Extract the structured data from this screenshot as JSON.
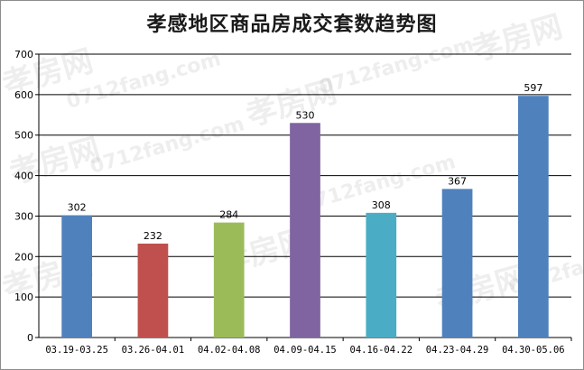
{
  "chart_data": {
    "type": "bar",
    "title": "孝感地区商品房成交套数趋势图",
    "categories": [
      "03.19-03.25",
      "03.26-04.01",
      "04.02-04.08",
      "04.09-04.15",
      "04.16-04.22",
      "04.23-04.29",
      "04.30-05.06"
    ],
    "values": [
      302,
      232,
      284,
      530,
      308,
      367,
      597
    ],
    "bar_colors": [
      "#4f81bd",
      "#c0504d",
      "#9bbb59",
      "#8064a2",
      "#4bacc6",
      "#4f81bd",
      "#4f81bd"
    ],
    "ylim": [
      0,
      700
    ],
    "yticks": [
      0,
      100,
      200,
      300,
      400,
      500,
      600,
      700
    ],
    "grid": true,
    "xlabel": "",
    "ylabel": ""
  },
  "watermark": {
    "brand": "孝房网",
    "domain": "0712fang.com"
  }
}
